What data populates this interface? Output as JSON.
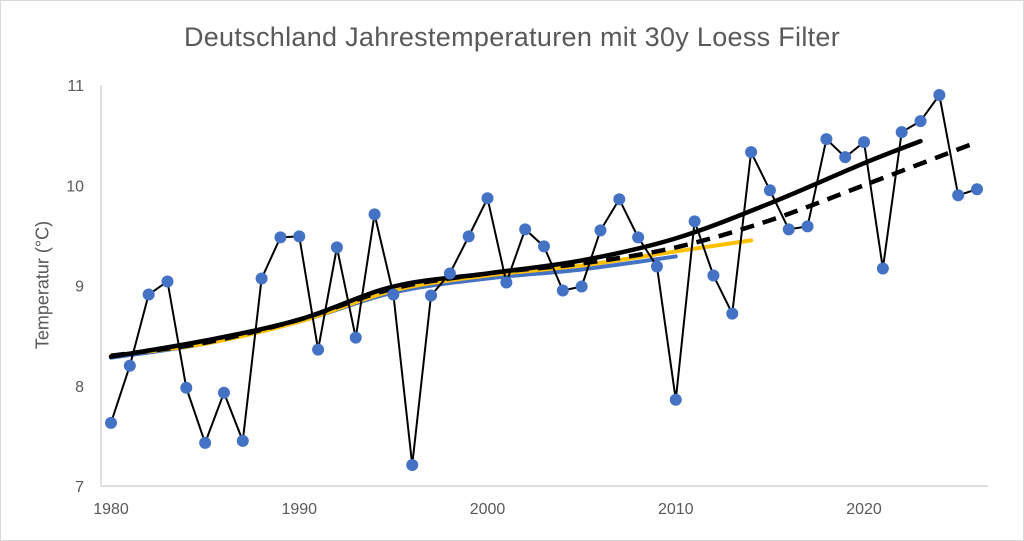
{
  "chart_data": {
    "type": "line",
    "title": "Deutschland Jahrestemperaturen mit 30y Loess Filter",
    "xlabel": "",
    "ylabel": "Temperatur (°C)",
    "xlim": [
      1980,
      2026
    ],
    "ylim": [
      7,
      11
    ],
    "x_ticks": [
      1980,
      1990,
      2000,
      2010,
      2020
    ],
    "y_ticks": [
      7,
      8,
      9,
      10,
      11
    ],
    "grid": false,
    "legend": "none",
    "series": [
      {
        "kind": "annual-temperature",
        "color": "#000000",
        "marker_color": "#4472c4",
        "x": [
          1980,
          1981,
          1982,
          1983,
          1984,
          1985,
          1986,
          1987,
          1988,
          1989,
          1990,
          1991,
          1992,
          1993,
          1994,
          1995,
          1996,
          1997,
          1998,
          1999,
          2000,
          2001,
          2002,
          2003,
          2004,
          2005,
          2006,
          2007,
          2008,
          2009,
          2010,
          2011,
          2012,
          2013,
          2014,
          2015,
          2016,
          2017,
          2018,
          2019,
          2020,
          2021,
          2022,
          2023,
          2024,
          2025,
          2026
        ],
        "y": [
          7.63,
          8.2,
          8.91,
          9.04,
          7.98,
          7.43,
          7.93,
          7.45,
          9.07,
          9.48,
          9.49,
          8.36,
          9.38,
          8.48,
          9.71,
          8.91,
          7.21,
          8.9,
          9.12,
          9.49,
          9.87,
          9.03,
          9.56,
          9.39,
          8.95,
          8.99,
          9.55,
          9.86,
          9.48,
          9.19,
          7.86,
          9.64,
          9.1,
          8.72,
          10.33,
          9.95,
          9.56,
          9.59,
          10.46,
          10.28,
          10.43,
          9.17,
          10.53,
          10.64,
          10.9,
          9.9,
          9.96
        ]
      },
      {
        "kind": "loess-blue",
        "color": "#4472c4",
        "x": [
          1980,
          1985,
          1990,
          1995,
          2000,
          2005,
          2010
        ],
        "y": [
          8.28,
          8.42,
          8.64,
          8.93,
          9.07,
          9.16,
          9.29
        ]
      },
      {
        "kind": "loess-yellow",
        "color": "#ffc000",
        "x": [
          1980,
          1985,
          1990,
          1995,
          2000,
          2005,
          2010,
          2014
        ],
        "y": [
          8.3,
          8.42,
          8.64,
          8.95,
          9.1,
          9.2,
          9.34,
          9.45
        ]
      },
      {
        "kind": "loess-black",
        "color": "#000000",
        "x": [
          1980,
          1985,
          1990,
          1995,
          2000,
          2005,
          2010,
          2015,
          2020,
          2023
        ],
        "y": [
          8.29,
          8.45,
          8.66,
          8.99,
          9.12,
          9.25,
          9.47,
          9.82,
          10.22,
          10.44
        ]
      },
      {
        "kind": "loess-dashed",
        "color": "#000000",
        "dashed": true,
        "x": [
          1980,
          1985,
          1990,
          1995,
          2000,
          2005,
          2010,
          2015,
          2020,
          2026
        ],
        "y": [
          8.3,
          8.43,
          8.66,
          8.97,
          9.12,
          9.22,
          9.38,
          9.65,
          10.0,
          10.43
        ]
      }
    ]
  }
}
